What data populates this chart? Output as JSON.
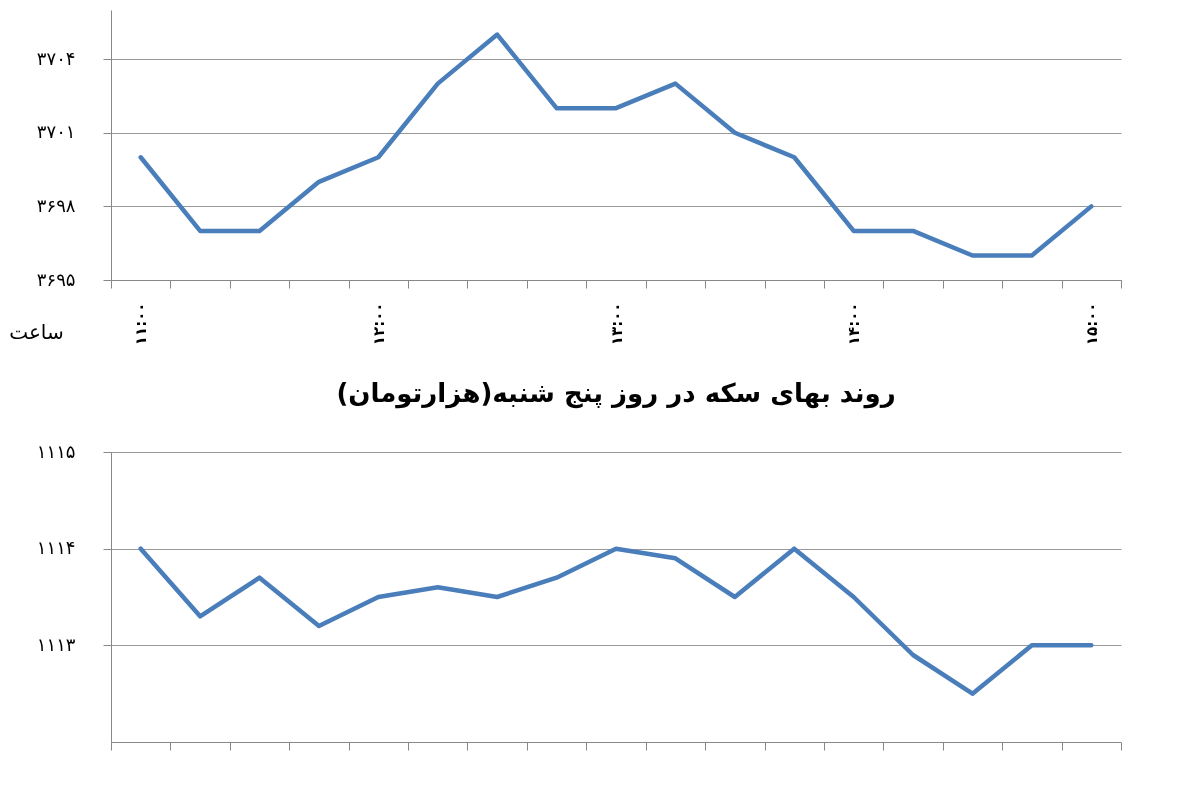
{
  "chart_data": [
    {
      "type": "line",
      "xlabel": "ساعت",
      "categories": [
        "۱۱:۰۰",
        null,
        null,
        null,
        "۱۲:۰۰",
        null,
        null,
        null,
        "۱۳:۰۰",
        null,
        null,
        null,
        "۱۴:۰۰",
        null,
        null,
        null,
        "۱۵:۰۰"
      ],
      "series": [
        {
          "color": "#4a7ebb",
          "values": [
            3700,
            3697,
            3697,
            3699,
            3700,
            3703,
            3705,
            3702,
            3702,
            3703,
            3701,
            3700,
            3697,
            3697,
            3696,
            3696,
            3698
          ]
        }
      ],
      "ylim": [
        3695,
        3706
      ],
      "yticks": [
        {
          "value": 3695,
          "label": "۳۶۹۵"
        },
        {
          "value": 3698,
          "label": "۳۶۹۸"
        },
        {
          "value": 3701,
          "label": "۳۷۰۱"
        },
        {
          "value": 3704,
          "label": "۳۷۰۴"
        }
      ],
      "grid": "y"
    },
    {
      "type": "line",
      "title": "روند بهای سکه در روز پنج شنبه(هزارتومان)",
      "categories": [
        null,
        null,
        null,
        null,
        null,
        null,
        null,
        null,
        null,
        null,
        null,
        null,
        null,
        null,
        null,
        null,
        null
      ],
      "series": [
        {
          "color": "#4a7ebb",
          "values": [
            1114,
            1113.3,
            1113.7,
            1113.2,
            1113.5,
            1113.6,
            1113.5,
            1113.7,
            1114,
            1113.9,
            1113.5,
            1114,
            1113.5,
            1112.9,
            1112.5,
            1113,
            1113
          ]
        }
      ],
      "ylim": [
        1112,
        1115
      ],
      "yticks": [
        {
          "value": 1113,
          "label": "۱۱۱۳"
        },
        {
          "value": 1114,
          "label": "۱۱۱۴"
        },
        {
          "value": 1115,
          "label": "۱۱۱۵"
        }
      ],
      "grid": "y",
      "tick_labels": "y"
    }
  ]
}
